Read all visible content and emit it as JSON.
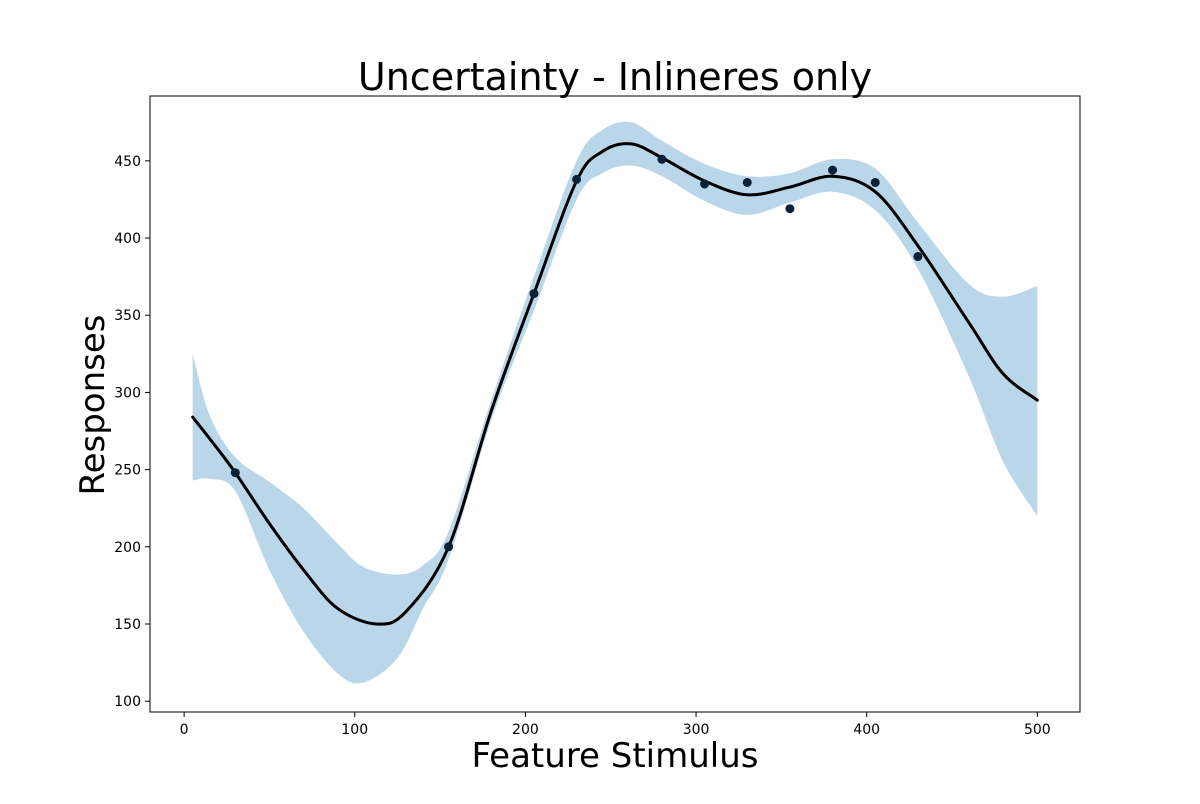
{
  "chart_data": {
    "type": "line",
    "title": "Uncertainty - Inlineres only",
    "xlabel": "Feature Stimulus",
    "ylabel": "Responses",
    "xlim": [
      -20,
      525
    ],
    "ylim": [
      93,
      492
    ],
    "x_ticks": [
      0,
      100,
      200,
      300,
      400,
      500
    ],
    "y_ticks": [
      100,
      150,
      200,
      250,
      300,
      350,
      400,
      450
    ],
    "grid": false,
    "legend": "none",
    "colors": {
      "mean_line": "#000000",
      "band": "#bad6e9",
      "points": "#0b2236"
    },
    "series": [
      {
        "kind": "points",
        "x": [
          30,
          155,
          205,
          230,
          280,
          305,
          330,
          355,
          380,
          405,
          430
        ],
        "y": [
          248,
          200,
          364,
          438,
          451,
          435,
          436,
          419,
          444,
          436,
          388
        ]
      },
      {
        "kind": "mean",
        "x": [
          5,
          15,
          30,
          50,
          70,
          90,
          113,
          130,
          155,
          180,
          205,
          230,
          245,
          262,
          280,
          305,
          330,
          355,
          380,
          405,
          430,
          460,
          480,
          500
        ],
        "y": [
          284,
          270,
          248,
          215,
          185,
          160,
          150,
          158,
          200,
          288,
          364,
          437,
          456,
          461,
          452,
          437,
          428,
          433,
          440,
          430,
          395,
          345,
          312,
          295
        ]
      },
      {
        "kind": "band",
        "x": [
          5,
          15,
          30,
          50,
          70,
          90,
          105,
          125,
          140,
          155,
          180,
          205,
          230,
          245,
          262,
          280,
          305,
          330,
          355,
          380,
          405,
          430,
          460,
          480,
          500
        ],
        "upper": [
          325,
          285,
          258,
          242,
          225,
          202,
          187,
          182,
          188,
          210,
          295,
          375,
          450,
          470,
          475,
          463,
          448,
          440,
          442,
          451,
          445,
          410,
          370,
          362,
          369
        ],
        "lower": [
          243,
          244,
          236,
          185,
          145,
          118,
          112,
          128,
          160,
          192,
          282,
          353,
          425,
          442,
          447,
          440,
          424,
          415,
          423,
          430,
          418,
          380,
          310,
          255,
          220
        ]
      }
    ]
  }
}
